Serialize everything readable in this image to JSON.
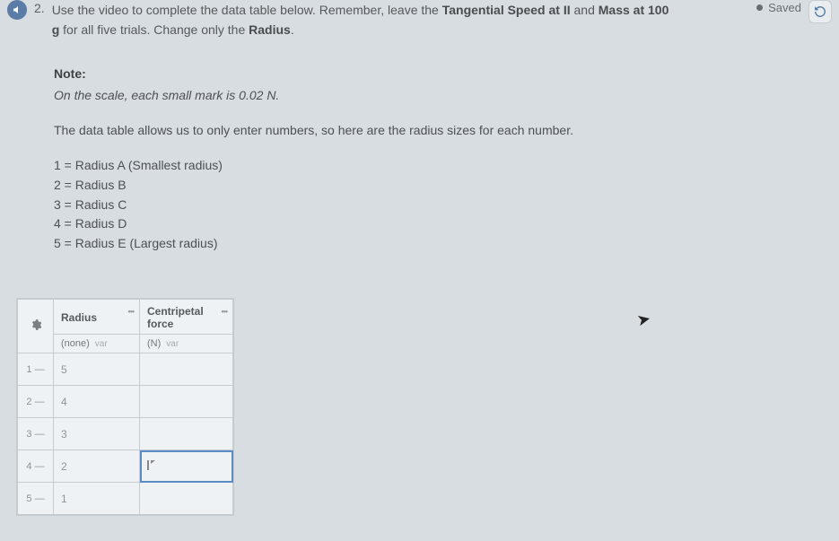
{
  "header": {
    "question_number": "2.",
    "prompt_a": "Use the video to complete the data table below. Remember, leave the ",
    "prompt_tspeed": "Tangential Speed at II",
    "prompt_mid": " and ",
    "prompt_mass": "Mass at 100",
    "line2_a": "g",
    "line2_b": " for all five trials. Change only the ",
    "line2_radius": "Radius",
    "line2_c": ".",
    "saved_label": "Saved"
  },
  "note": {
    "label": "Note:",
    "text": "On the scale, each small mark is 0.02 N."
  },
  "intro": "The data table allows us to only enter numbers, so here are the radius sizes for each number.",
  "legend": {
    "l1": "1 = Radius A (Smallest radius)",
    "l2": "2 = Radius B",
    "l3": "3 = Radius C",
    "l4": "4 = Radius D",
    "l5": "5 = Radius E (Largest radius)"
  },
  "table": {
    "col_radius": "Radius",
    "col_force": "Centripetal force",
    "unit_radius_main": "(none)",
    "unit_radius_sub": "var",
    "unit_force_main": "(N)",
    "unit_force_sub": "var",
    "rows": [
      {
        "idx": "1  —",
        "radius": "5",
        "force": ""
      },
      {
        "idx": "2  —",
        "radius": "4",
        "force": ""
      },
      {
        "idx": "3  —",
        "radius": "3",
        "force": ""
      },
      {
        "idx": "4  —",
        "radius": "2",
        "force": ""
      },
      {
        "idx": "5  —",
        "radius": "1",
        "force": ""
      }
    ],
    "active_row": 3
  }
}
